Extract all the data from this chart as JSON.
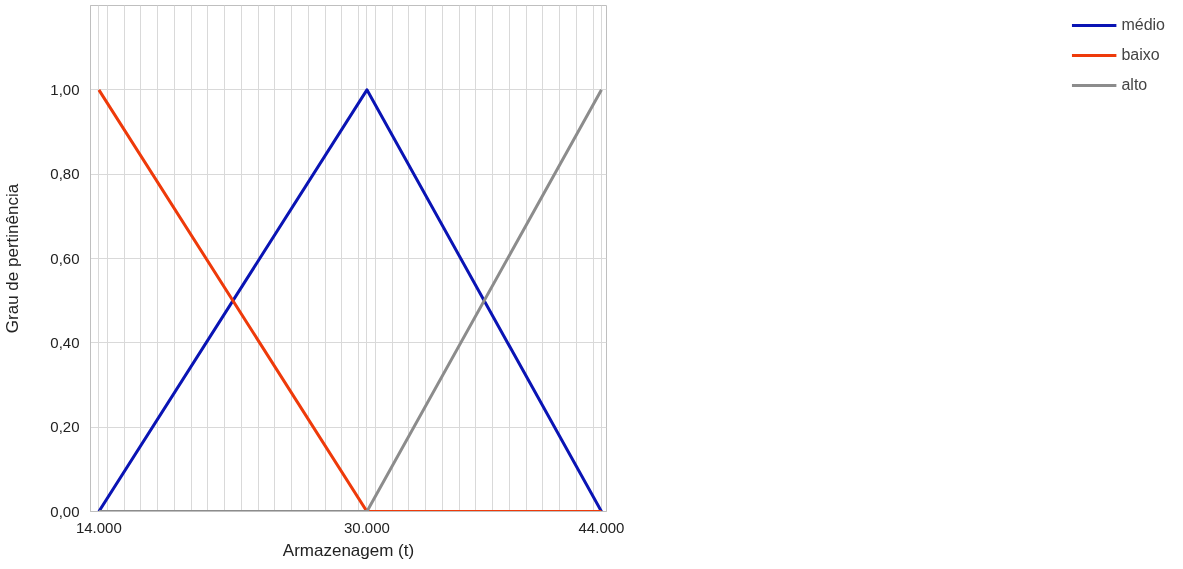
{
  "chart_data": {
    "type": "line",
    "xlabel": "Armazenagem (t)",
    "ylabel": "Grau de pertinência",
    "x": [
      14000,
      30000,
      44000
    ],
    "series": [
      {
        "name": "médio",
        "color": "#0a14b4",
        "values": [
          0,
          1,
          0
        ]
      },
      {
        "name": "baixo",
        "color": "#ee3a0a",
        "values": [
          1,
          0,
          0
        ]
      },
      {
        "name": "alto",
        "color": "#8c8c8c",
        "values": [
          0,
          0,
          1
        ]
      }
    ],
    "xlim": [
      13500,
      44300
    ],
    "xticks": [
      {
        "value": 14000,
        "label": "14.000"
      },
      {
        "value": 14500,
        "label": null
      },
      {
        "value": 15500,
        "label": null
      },
      {
        "value": 16500,
        "label": null
      },
      {
        "value": 17500,
        "label": null
      },
      {
        "value": 18500,
        "label": null
      },
      {
        "value": 19500,
        "label": null
      },
      {
        "value": 20500,
        "label": null
      },
      {
        "value": 21500,
        "label": null
      },
      {
        "value": 22500,
        "label": null
      },
      {
        "value": 23500,
        "label": null
      },
      {
        "value": 24500,
        "label": null
      },
      {
        "value": 25500,
        "label": null
      },
      {
        "value": 26500,
        "label": null
      },
      {
        "value": 27500,
        "label": null
      },
      {
        "value": 28500,
        "label": null
      },
      {
        "value": 29500,
        "label": null
      },
      {
        "value": 30000,
        "label": "30.000"
      },
      {
        "value": 30500,
        "label": null
      },
      {
        "value": 31500,
        "label": null
      },
      {
        "value": 32500,
        "label": null
      },
      {
        "value": 33500,
        "label": null
      },
      {
        "value": 34500,
        "label": null
      },
      {
        "value": 35500,
        "label": null
      },
      {
        "value": 36500,
        "label": null
      },
      {
        "value": 37500,
        "label": null
      },
      {
        "value": 38500,
        "label": null
      },
      {
        "value": 39500,
        "label": null
      },
      {
        "value": 40500,
        "label": null
      },
      {
        "value": 41500,
        "label": null
      },
      {
        "value": 42500,
        "label": null
      },
      {
        "value": 43500,
        "label": null
      },
      {
        "value": 44000,
        "label": "44.000"
      }
    ],
    "ylim": [
      0,
      1.2
    ],
    "yticks": [
      {
        "value": 0,
        "label": "0,00"
      },
      {
        "value": 0.2,
        "label": "0,20"
      },
      {
        "value": 0.4,
        "label": "0,40"
      },
      {
        "value": 0.6,
        "label": "0,60"
      },
      {
        "value": 0.8,
        "label": "0,80"
      },
      {
        "value": 1.0,
        "label": "1,00"
      },
      {
        "value": 1.2,
        "label": null
      }
    ],
    "grid": true,
    "legend": "right",
    "marker": "none",
    "line_style": "solid"
  }
}
